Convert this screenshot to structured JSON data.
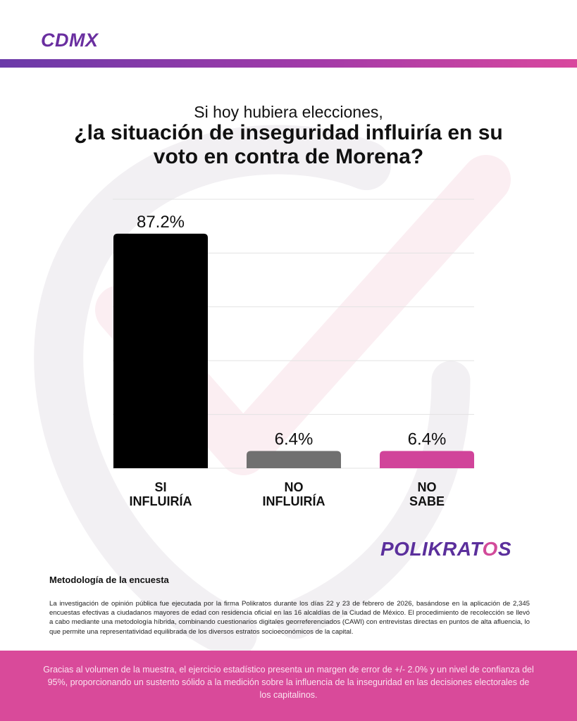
{
  "header": {
    "region": "CDMX"
  },
  "title": {
    "pre": "Si hoy hubiera elecciones,",
    "main": "¿la situación de inseguridad influiría en su voto en contra de Morena?"
  },
  "chart_data": {
    "type": "bar",
    "categories": [
      [
        "SI",
        "INFLUIRÍA"
      ],
      [
        "NO",
        "INFLUIRÍA"
      ],
      [
        "NO",
        "SABE"
      ]
    ],
    "values": [
      87.2,
      6.4,
      6.4
    ],
    "value_labels": [
      "87.2%",
      "6.4%",
      "6.4%"
    ],
    "colors": [
      "#000000",
      "#707070",
      "#d1449a"
    ],
    "ylim": [
      0,
      100
    ],
    "grid": true,
    "legend": "none",
    "xlabel": "",
    "ylabel": ""
  },
  "brand": {
    "name_prefix": "POLIKRAT",
    "name_o": "O",
    "name_suffix": "S"
  },
  "methodology": {
    "title": "Metodología de la encuesta",
    "text": "La investigación de opinión pública fue ejecutada por la firma Polikratos durante los días 22 y 23 de febrero de 2026, basándose en la aplicación de 2,345 encuestas efectivas a ciudadanos mayores de edad con residencia oficial en las 16 alcaldías de la Ciudad de México. El procedimiento de recolección se llevó a cabo mediante una metodología híbrida, combinando cuestionarios digitales georreferenciados (CAWI) con entrevistas directas en puntos de alta afluencia, lo que permite una representatividad equilibrada de los diversos estratos socioeconómicos de la capital."
  },
  "footer": {
    "text": "Gracias al volumen de la muestra, el ejercicio estadístico presenta un margen de error de +/- 2.0% y un nivel de confianza del 95%, proporcionando un sustento sólido a la medición sobre la influencia de la inseguridad en las decisiones electorales de los capitalinos."
  },
  "colors": {
    "accent_purple": "#6a2fa0",
    "accent_pink": "#d94a9a"
  }
}
